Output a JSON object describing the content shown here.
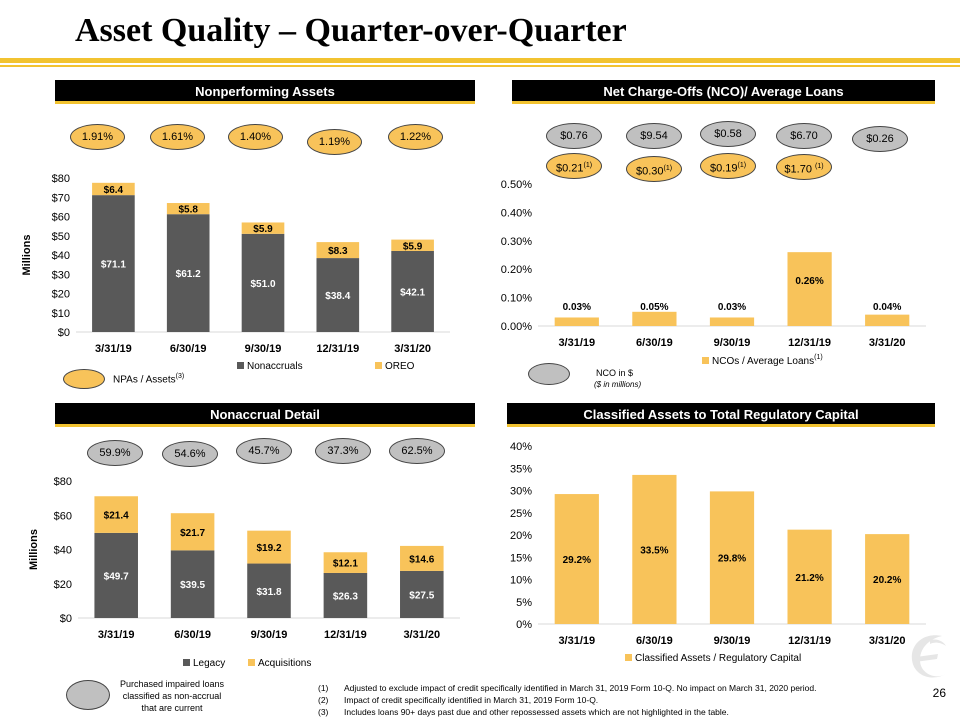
{
  "page": {
    "title": "Asset Quality – Quarter-over-Quarter",
    "page_number": "26",
    "colors": {
      "accent": "#f2c330",
      "bar_primary": "#595959",
      "bar_secondary": "#f8c35a",
      "header_bg": "#000000",
      "oval_gray": "#c0c0c0"
    }
  },
  "panels": {
    "npa": {
      "header": "Nonperforming Assets",
      "ovals": [
        "1.91%",
        "1.61%",
        "1.40%",
        "1.19%",
        "1.22%"
      ],
      "legend_key_label": "NPAs / Assets",
      "legend_key_sup": "(3)"
    },
    "nco": {
      "header": "Net Charge-Offs (NCO)/ Average Loans",
      "ovals_gray": [
        "$0.76",
        "$9.54",
        "$0.58",
        "$6.70",
        "$0.26"
      ],
      "ovals_yellow": [
        {
          "text": "$0.21",
          "sup": "(1)"
        },
        {
          "text": "$0.30",
          "sup": "(1)"
        },
        {
          "text": "$0.19",
          "sup": "(1)"
        },
        {
          "text": "$1.70 ",
          "sup": "(1)"
        }
      ],
      "legend_key_label": "NCO in $",
      "legend_key_sub": "($ in millions)"
    },
    "nonaccrual": {
      "header": "Nonaccrual Detail",
      "ovals": [
        "59.9%",
        "54.6%",
        "45.7%",
        "37.3%",
        "62.5%"
      ],
      "legend_key_label": "Purchased impaired loans classified as non-accrual that are current"
    },
    "classified": {
      "header": "Classified Assets to Total Regulatory Capital"
    }
  },
  "chart_data": [
    {
      "id": "npa",
      "type": "bar",
      "stacked": true,
      "categories": [
        "3/31/19",
        "6/30/19",
        "9/30/19",
        "12/31/19",
        "3/31/20"
      ],
      "series": [
        {
          "name": "Nonaccruals",
          "values": [
            71.1,
            61.2,
            51.0,
            38.4,
            42.1
          ],
          "labels": [
            "$71.1",
            "$61.2",
            "$51.0",
            "$38.4",
            "$42.1"
          ],
          "color": "#595959"
        },
        {
          "name": "OREO",
          "values": [
            6.4,
            5.8,
            5.9,
            8.3,
            5.9
          ],
          "labels": [
            "$6.4",
            "$5.8",
            "$5.9",
            "$8.3",
            "$5.9"
          ],
          "color": "#f8c35a"
        }
      ],
      "ylabel": "Millions",
      "ylim": [
        0,
        80
      ],
      "yticks": [
        "$0",
        "$10",
        "$20",
        "$30",
        "$40",
        "$50",
        "$60",
        "$70",
        "$80"
      ],
      "grid": false,
      "legend": "bottom"
    },
    {
      "id": "nco",
      "type": "bar",
      "categories": [
        "3/31/19",
        "6/30/19",
        "9/30/19",
        "12/31/19",
        "3/31/20"
      ],
      "series": [
        {
          "name": "NCOs / Average Loans",
          "name_sup": "(1)",
          "values": [
            0.03,
            0.05,
            0.03,
            0.26,
            0.04
          ],
          "labels": [
            "0.03%",
            "0.05%",
            "0.03%",
            "0.26%",
            "0.04%"
          ],
          "color": "#f8c35a"
        }
      ],
      "ylim": [
        0,
        0.5
      ],
      "yticks": [
        "0.00%",
        "0.10%",
        "0.20%",
        "0.30%",
        "0.40%",
        "0.50%"
      ],
      "grid": false,
      "legend": "bottom"
    },
    {
      "id": "nonaccrual",
      "type": "bar",
      "stacked": true,
      "categories": [
        "3/31/19",
        "6/30/19",
        "9/30/19",
        "12/31/19",
        "3/31/20"
      ],
      "series": [
        {
          "name": "Legacy",
          "values": [
            49.7,
            39.5,
            31.8,
            26.3,
            27.5
          ],
          "labels": [
            "$49.7",
            "$39.5",
            "$31.8",
            "$26.3",
            "$27.5"
          ],
          "color": "#595959"
        },
        {
          "name": "Acquisitions",
          "values": [
            21.4,
            21.7,
            19.2,
            12.1,
            14.6
          ],
          "labels": [
            "$21.4",
            "$21.7",
            "$19.2",
            "$12.1",
            "$14.6"
          ],
          "color": "#f8c35a"
        }
      ],
      "ylabel": "Millions",
      "ylim": [
        0,
        80
      ],
      "yticks": [
        "$0",
        "$20",
        "$40",
        "$60",
        "$80"
      ],
      "grid": false,
      "legend": "bottom"
    },
    {
      "id": "classified",
      "type": "bar",
      "categories": [
        "3/31/19",
        "6/30/19",
        "9/30/19",
        "12/31/19",
        "3/31/20"
      ],
      "series": [
        {
          "name": "Classified Assets / Regulatory Capital",
          "values": [
            29.2,
            33.5,
            29.8,
            21.2,
            20.2
          ],
          "labels": [
            "29.2%",
            "33.5%",
            "29.8%",
            "21.2%",
            "20.2%"
          ],
          "color": "#f8c35a"
        }
      ],
      "ylim": [
        0,
        40
      ],
      "yticks": [
        "0%",
        "5%",
        "10%",
        "15%",
        "20%",
        "25%",
        "30%",
        "35%",
        "40%"
      ],
      "grid": false,
      "legend": "bottom"
    }
  ],
  "footnotes": [
    {
      "num": "(1)",
      "text": "Adjusted to exclude impact of credit specifically identified in March 31, 2019 Form 10-Q.  No impact on March 31, 2020 period."
    },
    {
      "num": "(2)",
      "text": "Impact of credit specifically identified in March 31, 2019 Form 10-Q."
    },
    {
      "num": "(3)",
      "text": "Includes loans 90+ days past due and other repossessed assets which are not highlighted in the table."
    }
  ]
}
